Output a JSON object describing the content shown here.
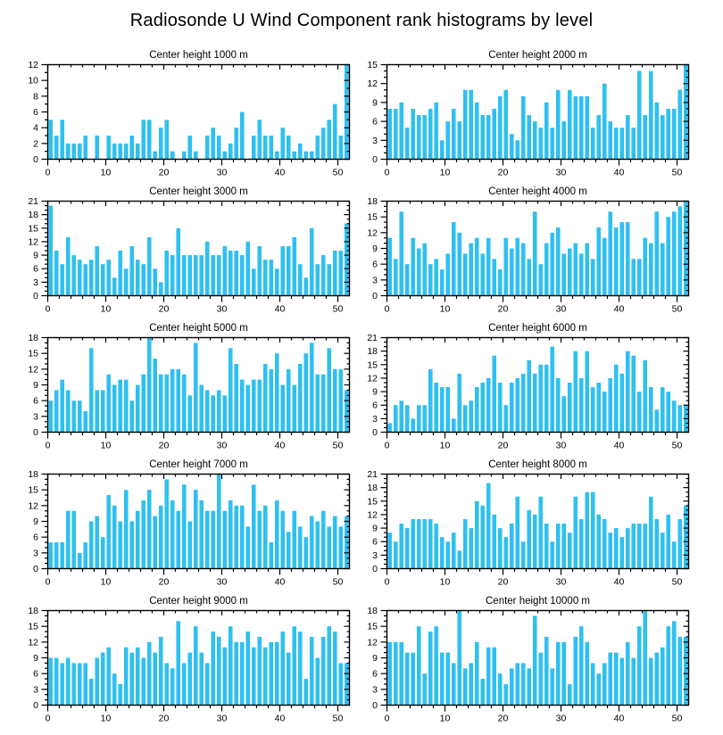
{
  "page_title": "Radiosonde U Wind Component rank histograms by level",
  "colors": {
    "bar": "#2FC0F0",
    "axis": "#000000",
    "text": "#000000",
    "background": "#FFFFFF"
  },
  "x_axis": {
    "range": [
      0,
      52
    ],
    "ticks": [
      0,
      10,
      20,
      30,
      40,
      50
    ],
    "minor_step": 2
  },
  "chart_data": [
    {
      "type": "bar",
      "title": "Center height 1000 m",
      "ymax": 12,
      "ytick_step": 2,
      "yticks": [
        0,
        2,
        4,
        6,
        8,
        10,
        12
      ],
      "n_ranks": 52,
      "values": [
        5,
        3,
        5,
        2,
        2,
        2,
        3,
        0,
        3,
        0,
        3,
        2,
        2,
        2,
        3,
        2,
        5,
        5,
        1,
        4,
        5,
        1,
        0,
        1,
        3,
        1,
        0,
        3,
        4,
        3,
        1,
        2,
        4,
        6,
        0,
        3,
        5,
        3,
        3,
        1,
        4,
        3,
        1,
        2,
        1,
        1,
        3,
        4,
        5,
        7,
        3,
        12
      ]
    },
    {
      "type": "bar",
      "title": "Center height 2000 m",
      "ymax": 15,
      "ytick_step": 3,
      "yticks": [
        0,
        3,
        6,
        9,
        12,
        15
      ],
      "n_ranks": 52,
      "values": [
        8,
        8,
        9,
        5,
        8,
        7,
        7,
        8,
        9,
        3,
        6,
        8,
        6,
        11,
        11,
        9,
        7,
        7,
        8,
        10,
        11,
        4,
        3,
        10,
        7,
        6,
        5,
        9,
        5,
        11,
        6,
        11,
        10,
        10,
        10,
        5,
        7,
        12,
        6,
        5,
        5,
        7,
        5,
        14,
        7,
        14,
        9,
        7,
        8,
        8,
        11,
        15
      ]
    },
    {
      "type": "bar",
      "title": "Center height 3000 m",
      "ymax": 21,
      "ytick_step": 3,
      "yticks": [
        0,
        3,
        6,
        9,
        12,
        15,
        18,
        21
      ],
      "n_ranks": 52,
      "values": [
        20,
        10,
        7,
        13,
        9,
        8,
        7,
        8,
        11,
        7,
        8,
        4,
        10,
        6,
        11,
        8,
        7,
        13,
        6,
        3,
        10,
        9,
        15,
        9,
        9,
        9,
        9,
        12,
        9,
        9,
        11,
        10,
        10,
        9,
        12,
        6,
        11,
        8,
        8,
        6,
        11,
        11,
        13,
        7,
        4,
        15,
        7,
        9,
        7,
        10,
        10,
        16
      ]
    },
    {
      "type": "bar",
      "title": "Center height 4000 m",
      "ymax": 18,
      "ytick_step": 3,
      "yticks": [
        0,
        3,
        6,
        9,
        12,
        15,
        18
      ],
      "n_ranks": 52,
      "values": [
        11,
        7,
        16,
        6,
        11,
        9,
        10,
        6,
        7,
        5,
        8,
        14,
        12,
        8,
        10,
        11,
        8,
        11,
        7,
        5,
        11,
        9,
        11,
        10,
        7,
        16,
        6,
        10,
        12,
        13,
        8,
        9,
        10,
        8,
        10,
        7,
        13,
        11,
        16,
        13,
        14,
        14,
        7,
        7,
        11,
        10,
        16,
        10,
        15,
        16,
        17,
        18
      ]
    },
    {
      "type": "bar",
      "title": "Center height 5000 m",
      "ymax": 18,
      "ytick_step": 3,
      "yticks": [
        0,
        3,
        6,
        9,
        12,
        15,
        18
      ],
      "n_ranks": 52,
      "values": [
        6,
        8,
        10,
        8,
        6,
        6,
        4,
        16,
        8,
        8,
        11,
        9,
        10,
        10,
        6,
        9,
        11,
        18,
        14,
        11,
        11,
        12,
        12,
        11,
        7,
        17,
        9,
        8,
        7,
        8,
        7,
        16,
        13,
        10,
        9,
        10,
        10,
        13,
        12,
        15,
        9,
        12,
        9,
        13,
        15,
        17,
        11,
        11,
        16,
        12,
        12,
        8
      ]
    },
    {
      "type": "bar",
      "title": "Center height 6000 m",
      "ymax": 21,
      "ytick_step": 3,
      "yticks": [
        0,
        3,
        6,
        9,
        12,
        15,
        18,
        21
      ],
      "n_ranks": 52,
      "values": [
        2,
        6,
        7,
        6,
        3,
        6,
        6,
        14,
        11,
        10,
        10,
        3,
        13,
        6,
        7,
        10,
        11,
        12,
        17,
        11,
        6,
        11,
        12,
        13,
        16,
        13,
        15,
        15,
        19,
        12,
        8,
        11,
        18,
        12,
        18,
        10,
        11,
        9,
        12,
        15,
        13,
        18,
        17,
        9,
        16,
        10,
        5,
        10,
        9,
        7,
        6,
        6
      ]
    },
    {
      "type": "bar",
      "title": "Center height 7000 m",
      "ymax": 18,
      "ytick_step": 3,
      "yticks": [
        0,
        3,
        6,
        9,
        12,
        15,
        18
      ],
      "n_ranks": 52,
      "values": [
        5,
        5,
        5,
        11,
        11,
        3,
        5,
        9,
        10,
        6,
        14,
        12,
        9,
        15,
        9,
        11,
        13,
        15,
        10,
        12,
        17,
        13,
        11,
        16,
        9,
        15,
        13,
        11,
        11,
        18,
        11,
        13,
        12,
        12,
        8,
        16,
        11,
        12,
        5,
        13,
        11,
        7,
        11,
        8,
        6,
        10,
        9,
        11,
        8,
        10,
        8,
        10
      ]
    },
    {
      "type": "bar",
      "title": "Center height 8000 m",
      "ymax": 21,
      "ytick_step": 3,
      "yticks": [
        0,
        3,
        6,
        9,
        12,
        15,
        18,
        21
      ],
      "n_ranks": 52,
      "values": [
        8,
        6,
        10,
        9,
        11,
        11,
        11,
        11,
        10,
        7,
        6,
        8,
        4,
        11,
        9,
        15,
        14,
        19,
        12,
        9,
        7,
        10,
        16,
        6,
        13,
        12,
        16,
        10,
        6,
        10,
        10,
        8,
        16,
        11,
        17,
        17,
        12,
        11,
        8,
        9,
        7,
        9,
        10,
        10,
        10,
        16,
        11,
        8,
        12,
        6,
        11,
        14
      ]
    },
    {
      "type": "bar",
      "title": "Center height 9000 m",
      "ymax": 18,
      "ytick_step": 3,
      "yticks": [
        0,
        3,
        6,
        9,
        12,
        15,
        18
      ],
      "n_ranks": 52,
      "values": [
        9,
        9,
        8,
        9,
        8,
        8,
        8,
        5,
        9,
        10,
        11,
        6,
        4,
        11,
        10,
        11,
        9,
        12,
        10,
        13,
        8,
        7,
        16,
        8,
        10,
        15,
        10,
        8,
        14,
        13,
        11,
        15,
        12,
        12,
        14,
        11,
        13,
        11,
        12,
        12,
        14,
        10,
        15,
        14,
        5,
        13,
        9,
        13,
        15,
        14,
        8,
        8
      ]
    },
    {
      "type": "bar",
      "title": "Center height 10000 m",
      "ymax": 18,
      "ytick_step": 3,
      "yticks": [
        0,
        3,
        6,
        9,
        12,
        15,
        18
      ],
      "n_ranks": 52,
      "values": [
        12,
        12,
        12,
        10,
        10,
        15,
        6,
        14,
        15,
        10,
        10,
        8,
        18,
        7,
        8,
        12,
        5,
        11,
        11,
        6,
        4,
        7,
        8,
        8,
        7,
        17,
        10,
        13,
        7,
        12,
        12,
        4,
        13,
        15,
        12,
        8,
        6,
        8,
        10,
        10,
        9,
        12,
        9,
        15,
        18,
        9,
        10,
        11,
        15,
        16,
        13,
        13
      ]
    }
  ]
}
